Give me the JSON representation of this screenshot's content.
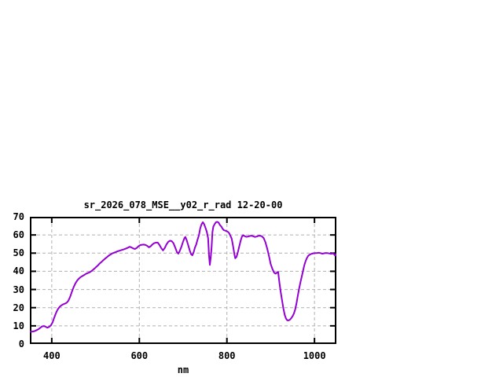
{
  "page": {
    "background": "#ffffff"
  },
  "chart_data": {
    "type": "line",
    "title": "sr_2026_078_MSE__y02_r_rad 12-20-00",
    "xlabel": "nm",
    "ylabel": "",
    "xlim": [
      350,
      1050
    ],
    "ylim": [
      0,
      70
    ],
    "x_ticks": [
      400,
      600,
      800,
      1000
    ],
    "y_ticks": [
      0,
      10,
      20,
      30,
      40,
      50,
      60,
      70
    ],
    "grid": true,
    "legend_position": "none",
    "colors": {
      "line": "#9400d3",
      "grid": "#b0b0b0",
      "axis": "#000000",
      "text": "#000000",
      "background": "#ffffff"
    },
    "series": [
      {
        "name": "sr_2026_078_MSE__y02_r_rad",
        "points": [
          [
            350,
            6.8
          ],
          [
            354,
            6.8
          ],
          [
            358,
            6.9
          ],
          [
            362,
            7.2
          ],
          [
            366,
            7.7
          ],
          [
            370,
            8.2
          ],
          [
            374,
            9.0
          ],
          [
            378,
            9.7
          ],
          [
            382,
            9.9
          ],
          [
            386,
            9.5
          ],
          [
            390,
            9.0
          ],
          [
            394,
            9.4
          ],
          [
            398,
            10.3
          ],
          [
            402,
            12.0
          ],
          [
            405,
            14.0
          ],
          [
            408,
            16.0
          ],
          [
            411,
            17.8
          ],
          [
            414,
            19.2
          ],
          [
            418,
            20.5
          ],
          [
            422,
            21.3
          ],
          [
            426,
            21.8
          ],
          [
            430,
            22.2
          ],
          [
            434,
            22.7
          ],
          [
            438,
            23.8
          ],
          [
            442,
            26.0
          ],
          [
            446,
            28.8
          ],
          [
            450,
            31.3
          ],
          [
            454,
            33.3
          ],
          [
            458,
            34.9
          ],
          [
            462,
            36.0
          ],
          [
            466,
            36.8
          ],
          [
            470,
            37.4
          ],
          [
            474,
            38.0
          ],
          [
            478,
            38.6
          ],
          [
            482,
            39.0
          ],
          [
            486,
            39.4
          ],
          [
            490,
            40.0
          ],
          [
            494,
            40.8
          ],
          [
            498,
            41.6
          ],
          [
            502,
            42.5
          ],
          [
            506,
            43.4
          ],
          [
            510,
            44.4
          ],
          [
            514,
            45.3
          ],
          [
            518,
            46.2
          ],
          [
            522,
            47.0
          ],
          [
            526,
            47.8
          ],
          [
            530,
            48.6
          ],
          [
            534,
            49.2
          ],
          [
            538,
            49.8
          ],
          [
            542,
            50.2
          ],
          [
            546,
            50.6
          ],
          [
            550,
            51.0
          ],
          [
            554,
            51.3
          ],
          [
            558,
            51.6
          ],
          [
            562,
            51.9
          ],
          [
            566,
            52.2
          ],
          [
            570,
            52.6
          ],
          [
            574,
            53.0
          ],
          [
            578,
            53.5
          ],
          [
            582,
            53.1
          ],
          [
            586,
            52.6
          ],
          [
            590,
            52.3
          ],
          [
            594,
            52.8
          ],
          [
            598,
            53.8
          ],
          [
            602,
            54.4
          ],
          [
            606,
            54.6
          ],
          [
            610,
            54.7
          ],
          [
            614,
            54.5
          ],
          [
            618,
            54.0
          ],
          [
            622,
            53.2
          ],
          [
            626,
            53.8
          ],
          [
            630,
            54.8
          ],
          [
            634,
            55.5
          ],
          [
            638,
            55.8
          ],
          [
            642,
            55.8
          ],
          [
            646,
            54.5
          ],
          [
            650,
            52.8
          ],
          [
            654,
            51.5
          ],
          [
            658,
            52.8
          ],
          [
            662,
            54.8
          ],
          [
            666,
            56.2
          ],
          [
            670,
            56.8
          ],
          [
            674,
            56.6
          ],
          [
            678,
            55.5
          ],
          [
            682,
            53.0
          ],
          [
            686,
            50.5
          ],
          [
            689,
            49.7
          ],
          [
            692,
            51.0
          ],
          [
            696,
            53.5
          ],
          [
            700,
            56.4
          ],
          [
            703,
            58.3
          ],
          [
            705,
            58.9
          ],
          [
            708,
            57.2
          ],
          [
            712,
            54.0
          ],
          [
            715,
            51.5
          ],
          [
            718,
            49.5
          ],
          [
            721,
            48.8
          ],
          [
            724,
            50.5
          ],
          [
            727,
            53.0
          ],
          [
            730,
            54.8
          ],
          [
            733,
            57.5
          ],
          [
            736,
            59.8
          ],
          [
            739,
            63.5
          ],
          [
            742,
            65.8
          ],
          [
            745,
            67.0
          ],
          [
            748,
            66.0
          ],
          [
            751,
            64.0
          ],
          [
            754,
            61.8
          ],
          [
            757,
            58.2
          ],
          [
            759,
            49.0
          ],
          [
            761,
            43.5
          ],
          [
            763,
            47.5
          ],
          [
            765,
            53.0
          ],
          [
            767,
            61.5
          ],
          [
            769,
            64.5
          ],
          [
            772,
            66.0
          ],
          [
            775,
            67.0
          ],
          [
            778,
            67.2
          ],
          [
            781,
            66.8
          ],
          [
            784,
            65.5
          ],
          [
            787,
            64.7
          ],
          [
            790,
            63.5
          ],
          [
            793,
            62.6
          ],
          [
            796,
            62.4
          ],
          [
            799,
            62.1
          ],
          [
            802,
            61.8
          ],
          [
            805,
            61.0
          ],
          [
            808,
            59.5
          ],
          [
            811,
            58.0
          ],
          [
            814,
            54.0
          ],
          [
            817,
            49.5
          ],
          [
            819,
            47.2
          ],
          [
            822,
            48.0
          ],
          [
            825,
            50.5
          ],
          [
            828,
            53.5
          ],
          [
            831,
            56.5
          ],
          [
            834,
            59.0
          ],
          [
            837,
            59.9
          ],
          [
            840,
            59.4
          ],
          [
            844,
            59.0
          ],
          [
            848,
            59.1
          ],
          [
            852,
            59.4
          ],
          [
            856,
            59.6
          ],
          [
            860,
            59.3
          ],
          [
            864,
            58.9
          ],
          [
            868,
            59.1
          ],
          [
            872,
            59.5
          ],
          [
            876,
            59.6
          ],
          [
            880,
            59.2
          ],
          [
            884,
            58.3
          ],
          [
            888,
            56.0
          ],
          [
            892,
            52.5
          ],
          [
            896,
            48.5
          ],
          [
            900,
            44.0
          ],
          [
            904,
            41.2
          ],
          [
            908,
            39.2
          ],
          [
            911,
            38.7
          ],
          [
            914,
            39.2
          ],
          [
            917,
            39.7
          ],
          [
            920,
            33.5
          ],
          [
            923,
            28.5
          ],
          [
            926,
            24.0
          ],
          [
            929,
            19.5
          ],
          [
            932,
            16.0
          ],
          [
            935,
            14.0
          ],
          [
            938,
            13.0
          ],
          [
            941,
            13.0
          ],
          [
            944,
            13.4
          ],
          [
            947,
            14.2
          ],
          [
            950,
            15.3
          ],
          [
            953,
            16.8
          ],
          [
            956,
            19.0
          ],
          [
            959,
            22.5
          ],
          [
            962,
            26.8
          ],
          [
            965,
            30.5
          ],
          [
            968,
            34.0
          ],
          [
            971,
            37.2
          ],
          [
            974,
            40.5
          ],
          [
            977,
            43.5
          ],
          [
            980,
            45.8
          ],
          [
            983,
            47.5
          ],
          [
            986,
            48.6
          ],
          [
            990,
            49.3
          ],
          [
            994,
            49.7
          ],
          [
            998,
            49.9
          ],
          [
            1002,
            50.0
          ],
          [
            1006,
            50.1
          ],
          [
            1010,
            50.2
          ],
          [
            1014,
            50.0
          ],
          [
            1018,
            49.7
          ],
          [
            1022,
            49.9
          ],
          [
            1026,
            50.1
          ],
          [
            1030,
            50.0
          ],
          [
            1034,
            49.8
          ],
          [
            1038,
            49.6
          ],
          [
            1042,
            49.9
          ],
          [
            1045,
            49.4
          ],
          [
            1047,
            48.7
          ],
          [
            1050,
            49.4
          ]
        ]
      }
    ]
  }
}
